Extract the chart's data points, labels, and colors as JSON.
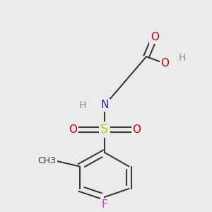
{
  "background_color": "#ebebeb",
  "bond_color": "#3a3a3a",
  "bond_width": 1.5,
  "figsize": [
    3.0,
    3.0
  ],
  "dpi": 100,
  "atom_labels": {
    "O_db": {
      "text": "O",
      "color": "#cc0000",
      "fontsize": 11,
      "ha": "center",
      "va": "center"
    },
    "O_oh": {
      "text": "O",
      "color": "#cc0000",
      "fontsize": 11,
      "ha": "center",
      "va": "center"
    },
    "H_oh": {
      "text": "H",
      "color": "#7a9a9a",
      "fontsize": 10,
      "ha": "left",
      "va": "center"
    },
    "N": {
      "text": "N",
      "color": "#2222cc",
      "fontsize": 11,
      "ha": "center",
      "va": "center"
    },
    "H_n": {
      "text": "H",
      "color": "#7a9a9a",
      "fontsize": 10,
      "ha": "right",
      "va": "center"
    },
    "S": {
      "text": "S",
      "color": "#cccc00",
      "fontsize": 13,
      "ha": "center",
      "va": "center"
    },
    "SO1": {
      "text": "O",
      "color": "#cc0000",
      "fontsize": 11,
      "ha": "right",
      "va": "center"
    },
    "SO2": {
      "text": "O",
      "color": "#cc0000",
      "fontsize": 11,
      "ha": "left",
      "va": "center"
    },
    "Me": {
      "text": "CH3",
      "color": "#3a3a3a",
      "fontsize": 9,
      "ha": "right",
      "va": "center"
    },
    "F": {
      "text": "F",
      "color": "#cc44cc",
      "fontsize": 11,
      "ha": "center",
      "va": "center"
    }
  }
}
